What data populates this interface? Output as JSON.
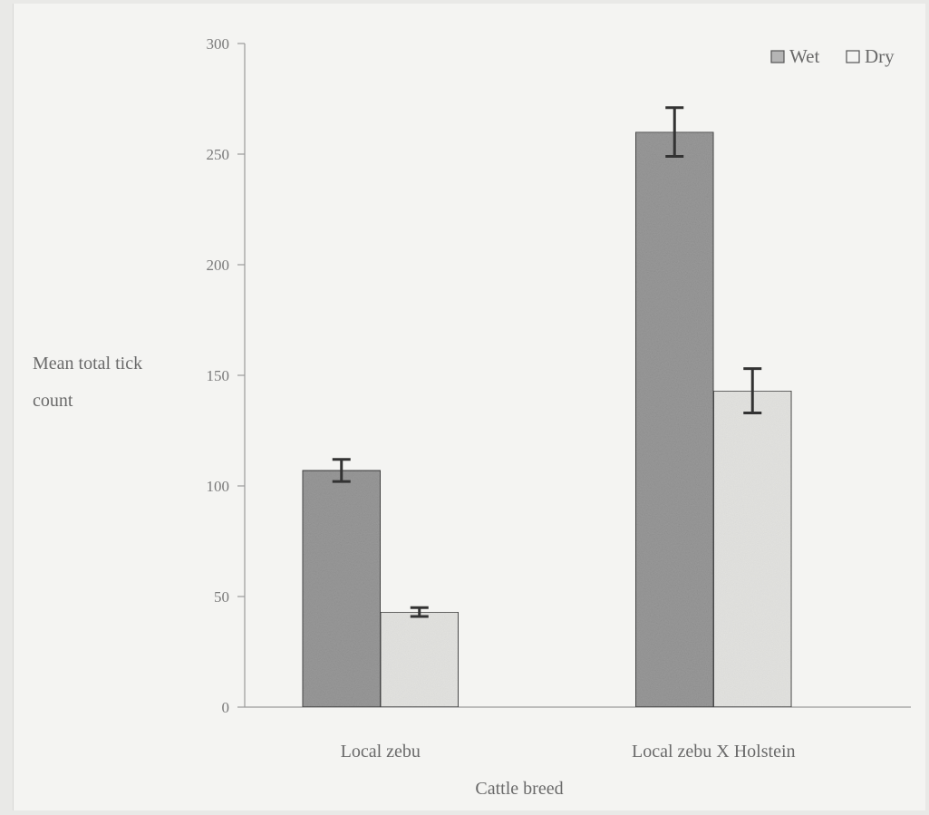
{
  "chart_data": {
    "type": "bar",
    "categories": [
      "Local zebu",
      "Local zebu X Holstein"
    ],
    "series": [
      {
        "name": "Wet",
        "values": [
          107,
          260
        ],
        "errors": [
          5,
          11
        ],
        "color": "#9a9a9a"
      },
      {
        "name": "Dry",
        "values": [
          43,
          143
        ],
        "errors": [
          2,
          10
        ],
        "color": "#e3e3e0"
      }
    ],
    "yticks": [
      0,
      50,
      100,
      150,
      200,
      250,
      300
    ],
    "ylim": [
      0,
      300
    ],
    "ylabel_lines": [
      "Mean total tick",
      "count"
    ],
    "xlabel": "Cattle breed",
    "legend_position": "top-right",
    "grid": false
  }
}
